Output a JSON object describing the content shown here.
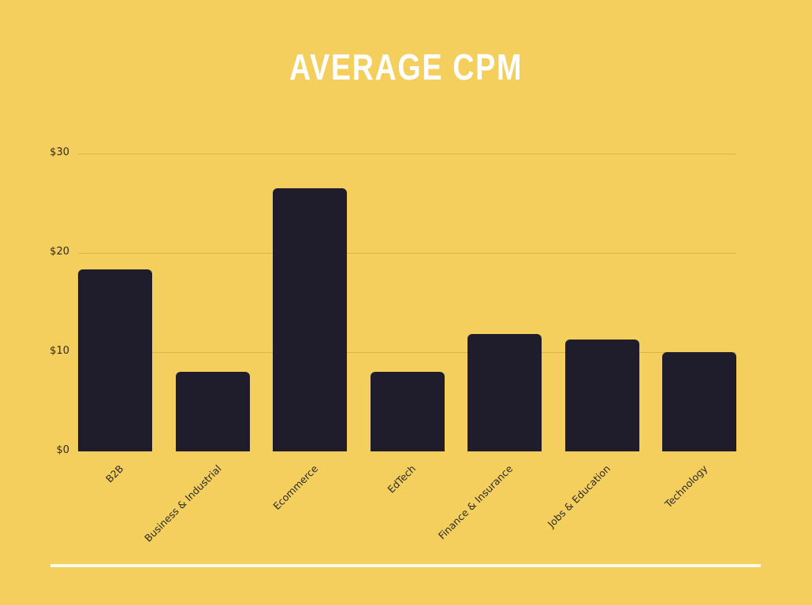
{
  "chart_data": {
    "type": "bar",
    "title": "AVERAGE CPM",
    "xlabel": "",
    "ylabel": "",
    "ylim": [
      0,
      30
    ],
    "yticks": [
      0,
      10,
      20,
      30
    ],
    "ytick_labels": [
      "$0",
      "$10",
      "$20",
      "$30"
    ],
    "grid": true,
    "legend": null,
    "categories": [
      "B2B",
      "Business & Industrial",
      "Ecommerce",
      "EdTech",
      "Finance & Insurance",
      "Jobs & Education",
      "Technology"
    ],
    "values": [
      18.3,
      8.0,
      26.5,
      8.0,
      11.8,
      11.3,
      10.0
    ],
    "colors": {
      "background": "#f4cf5d",
      "bar": "#1f1d2b",
      "title": "#ffffff",
      "grid": "#d8b54a",
      "footer_line": "#fffbe8"
    }
  }
}
